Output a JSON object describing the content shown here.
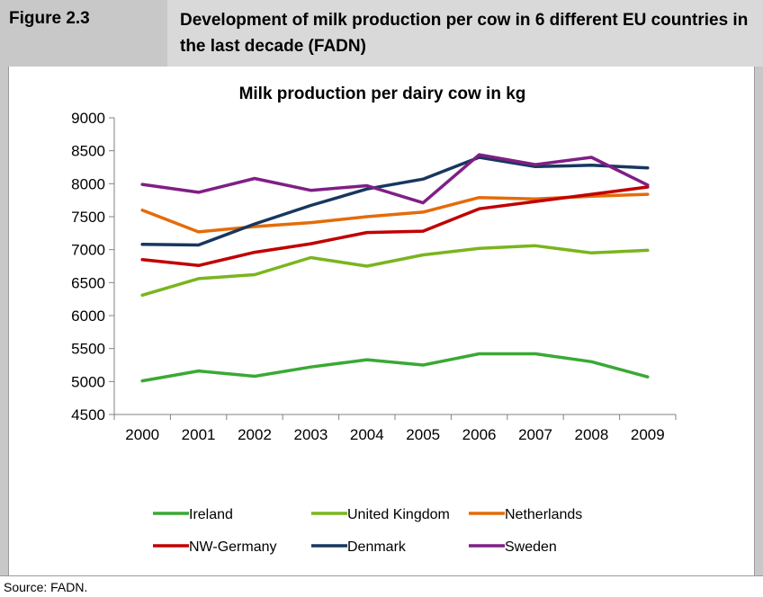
{
  "header": {
    "figure_label": "Figure 2.3",
    "figure_title": "Development of milk production per cow in 6 different EU countries in the last decade (FADN)"
  },
  "source": "Source: FADN.",
  "colors": {
    "Ireland": "#3aa935",
    "United Kingdom": "#7ab51d",
    "Netherlands": "#e46c0a",
    "NW-Germany": "#c00000",
    "Denmark": "#17375e",
    "Sweden": "#7f1f85"
  },
  "chart_data": {
    "type": "line",
    "title": "Milk production per dairy cow in kg",
    "xlabel": "",
    "ylabel": "",
    "x": [
      "2000",
      "2001",
      "2002",
      "2003",
      "2004",
      "2005",
      "2006",
      "2007",
      "2008",
      "2009"
    ],
    "ylim": [
      4500,
      9000
    ],
    "yticks": [
      "9000",
      "8500",
      "8000",
      "7500",
      "7000",
      "6500",
      "6000",
      "5500",
      "5000",
      "4500"
    ],
    "grid": false,
    "legend_position": "bottom",
    "series": [
      {
        "name": "Ireland",
        "values": [
          5010,
          5160,
          5080,
          5220,
          5330,
          5250,
          5420,
          5420,
          5300,
          5070
        ]
      },
      {
        "name": "United Kingdom",
        "values": [
          6310,
          6560,
          6620,
          6880,
          6750,
          6920,
          7020,
          7060,
          6950,
          6990
        ]
      },
      {
        "name": "Netherlands",
        "values": [
          7600,
          7270,
          7350,
          7410,
          7500,
          7570,
          7790,
          7770,
          7810,
          7840
        ]
      },
      {
        "name": "NW-Germany",
        "values": [
          6850,
          6760,
          6960,
          7090,
          7260,
          7280,
          7620,
          7730,
          7840,
          7950
        ]
      },
      {
        "name": "Denmark",
        "values": [
          7080,
          7070,
          7390,
          7670,
          7920,
          8070,
          8400,
          8260,
          8280,
          8240
        ]
      },
      {
        "name": "Sweden",
        "values": [
          7990,
          7870,
          8080,
          7900,
          7970,
          7710,
          8440,
          8290,
          8400,
          7980
        ]
      }
    ]
  }
}
